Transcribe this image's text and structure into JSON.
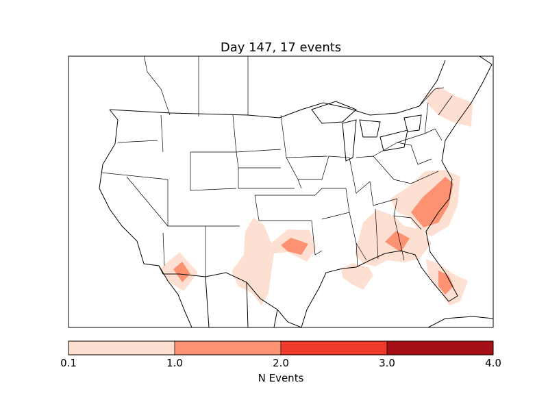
{
  "chart_data": {
    "type": "heatmap",
    "title": "Day 147, 17 events",
    "colorbar": {
      "label": "N Events",
      "ticks": [
        "0.1",
        "1.0",
        "2.0",
        "3.0",
        "4.0"
      ],
      "bins": [
        {
          "from": 0.1,
          "to": 1.0,
          "color": "#fee0d2"
        },
        {
          "from": 1.0,
          "to": 2.0,
          "color": "#fc9272"
        },
        {
          "from": 2.0,
          "to": 3.0,
          "color": "#ef3b2c"
        },
        {
          "from": 3.0,
          "to": 4.0,
          "color": "#a50f15"
        }
      ],
      "placement": "bottom"
    },
    "map": "contiguous-united-states",
    "regions": [
      {
        "area": "southern-arizona",
        "max_level": 1.0
      },
      {
        "area": "texas",
        "max_level": 0.1
      },
      {
        "area": "oklahoma",
        "max_level": 1.0
      },
      {
        "area": "gulf-coast-louisiana",
        "max_level": 0.1
      },
      {
        "area": "georgia",
        "max_level": 1.0
      },
      {
        "area": "carolinas-virginia",
        "max_level": 1.0
      },
      {
        "area": "southern-florida",
        "max_level": 1.0
      },
      {
        "area": "new-england",
        "max_level": 0.1
      }
    ]
  }
}
